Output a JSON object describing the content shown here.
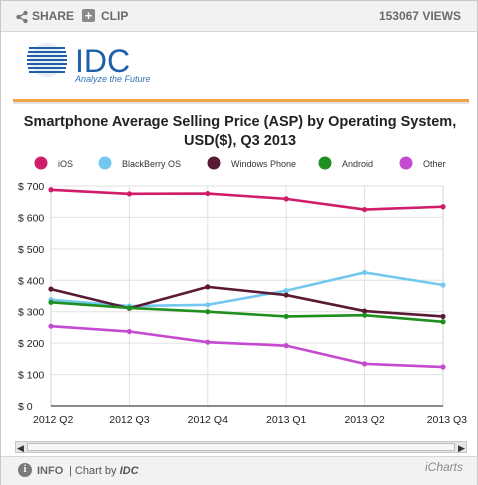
{
  "toolbar": {
    "share_label": "SHARE",
    "clip_label": "CLIP",
    "views": "153067 VIEWS"
  },
  "logo": {
    "text": "IDC",
    "tagline": "Analyze the Future"
  },
  "footer": {
    "info_label": "INFO",
    "chart_by_prefix": "| Chart by",
    "chart_by_brand": "IDC",
    "brand": "iCharts"
  },
  "colors": {
    "orange_rule": "#f1a347",
    "idc_blue": "#1f5fa8"
  },
  "chart_data": {
    "type": "line",
    "title": "Smartphone Average Selling Price (ASP) by Operating System, USD($), Q3 2013",
    "title_line1": "Smartphone Average Selling Price (ASP) by Operating System,",
    "title_line2": "USD($), Q3 2013",
    "categories": [
      "2012 Q2",
      "2012 Q3",
      "2012 Q4",
      "2013 Q1",
      "2013 Q2",
      "2013 Q3"
    ],
    "ylim": [
      0,
      700
    ],
    "y_ticks": [
      0,
      100,
      200,
      300,
      400,
      500,
      600,
      700
    ],
    "y_tick_labels": [
      "$ 0",
      "$ 100",
      "$ 200",
      "$ 300",
      "$ 400",
      "$ 500",
      "$ 600",
      "$ 700"
    ],
    "grid": true,
    "legend_position": "top",
    "series": [
      {
        "name": "iOS",
        "color": "#d01c6a",
        "values": [
          688,
          675,
          676,
          659,
          625,
          634
        ]
      },
      {
        "name": "BlackBerry OS",
        "color": "#73c8f0",
        "values": [
          338,
          318,
          322,
          367,
          425,
          385
        ]
      },
      {
        "name": "Windows Phone",
        "color": "#5b1a33",
        "values": [
          372,
          311,
          379,
          353,
          302,
          285
        ]
      },
      {
        "name": "Android",
        "color": "#1f8f1f",
        "values": [
          330,
          312,
          300,
          285,
          289,
          268
        ]
      },
      {
        "name": "Other",
        "color": "#c44ad0",
        "values": [
          254,
          237,
          203,
          192,
          134,
          124
        ]
      }
    ]
  }
}
